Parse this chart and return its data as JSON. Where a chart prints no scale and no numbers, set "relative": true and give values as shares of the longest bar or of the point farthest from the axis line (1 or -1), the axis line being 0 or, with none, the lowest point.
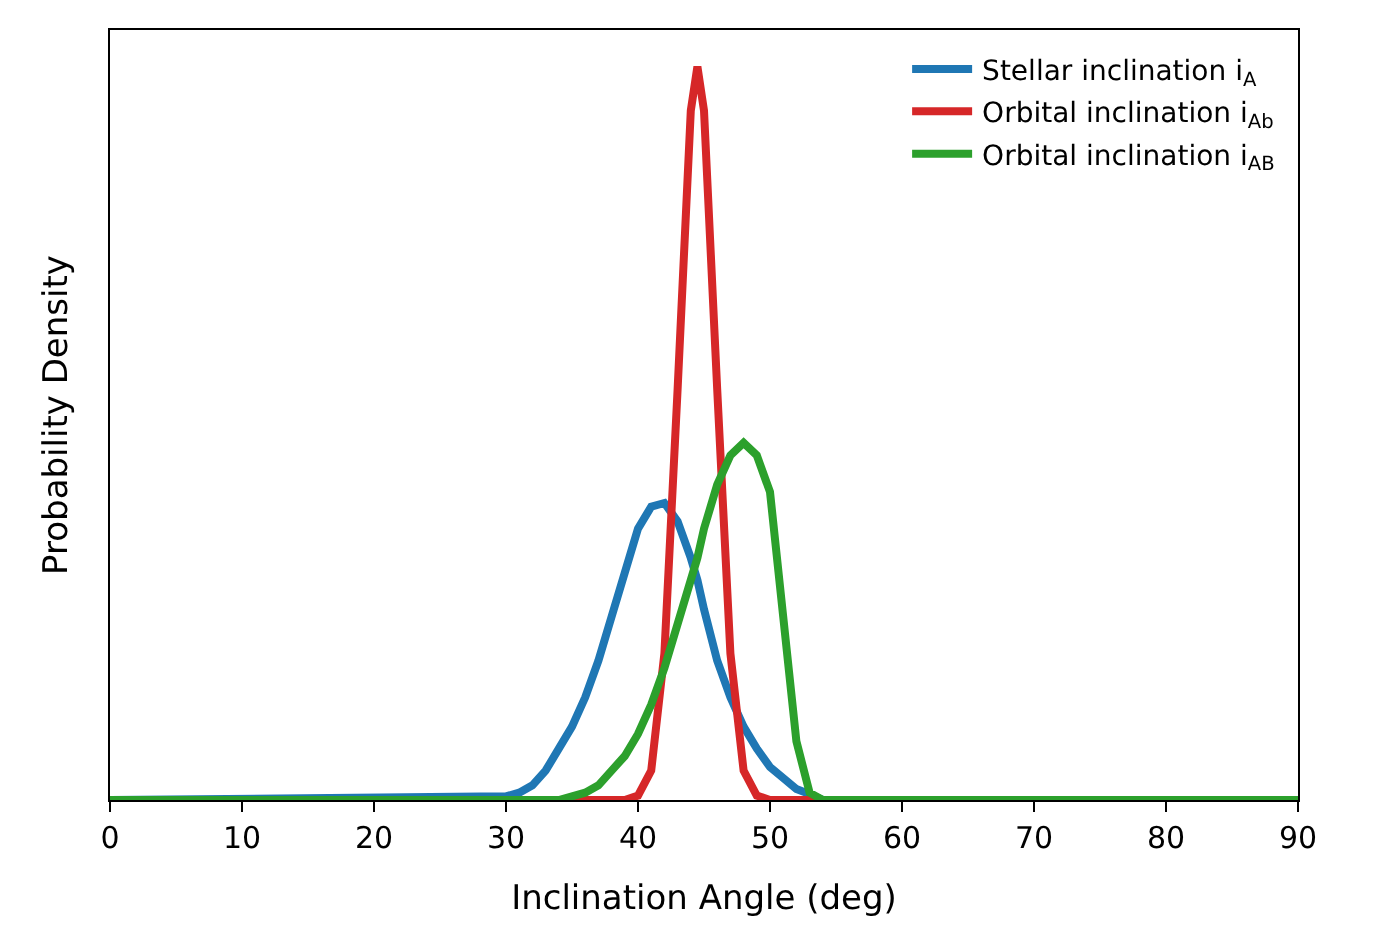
{
  "chart_data": {
    "type": "line",
    "xlabel": "Inclination Angle (deg)",
    "ylabel": "Probability Density",
    "relative": true,
    "x": [
      0,
      30,
      31,
      32,
      33,
      34,
      35,
      36,
      37,
      38,
      39,
      40,
      41,
      42,
      43,
      44,
      44.5,
      45,
      46,
      47,
      48,
      49,
      50,
      51,
      52,
      53,
      54,
      55,
      56,
      90
    ],
    "xlim": [
      0,
      90
    ],
    "xticks": [
      0,
      10,
      20,
      30,
      40,
      50,
      60,
      70,
      80,
      90
    ],
    "tick_labels": "x",
    "legend": "top right",
    "marker": "none",
    "line_style": "solid",
    "series": [
      {
        "name": "Stellar inclination i$_{A}$",
        "color": "#1f77b4",
        "values": [
          0,
          0.005,
          0.01,
          0.02,
          0.04,
          0.07,
          0.1,
          0.14,
          0.19,
          0.25,
          0.31,
          0.37,
          0.4,
          0.405,
          0.38,
          0.33,
          0.3,
          0.26,
          0.19,
          0.14,
          0.1,
          0.07,
          0.045,
          0.03,
          0.015,
          0.008,
          0,
          null,
          null,
          null
        ]
      },
      {
        "name": "Orbital inclination i$_{Ab}$",
        "color": "#d62728",
        "values": [
          null,
          null,
          null,
          null,
          null,
          0,
          0,
          0,
          0,
          0,
          0,
          0.006,
          0.04,
          0.2,
          0.56,
          0.94,
          1,
          0.94,
          0.56,
          0.2,
          0.04,
          0.006,
          0,
          0,
          0,
          0,
          0,
          0,
          null,
          null
        ]
      },
      {
        "name": "Orbital inclination i$_{AB}$",
        "color": "#2ca02c",
        "values": [
          0,
          0,
          0,
          0,
          0,
          0,
          0.005,
          0.01,
          0.02,
          0.04,
          0.06,
          0.09,
          0.13,
          0.18,
          0.24,
          0.3,
          0.33,
          0.37,
          0.43,
          0.47,
          0.487,
          0.47,
          0.42,
          0.25,
          0.08,
          0.01,
          0,
          0,
          0,
          0
        ]
      }
    ]
  }
}
